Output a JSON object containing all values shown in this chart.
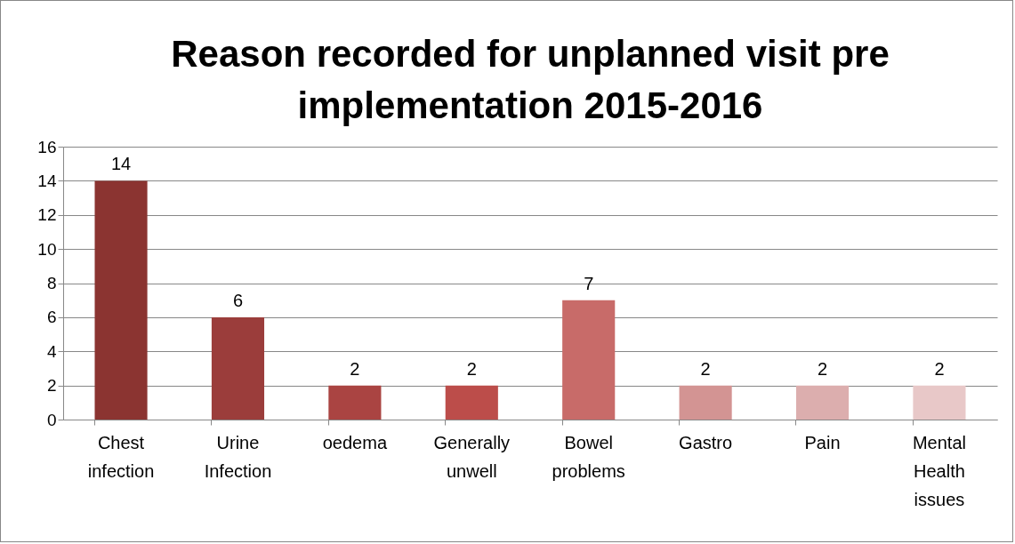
{
  "chart_data": {
    "type": "bar",
    "title": "Reason recorded for unplanned visit pre implementation 2015-2016",
    "categories": [
      "Chest infection",
      "Urine Infection",
      "oedema",
      "Generally unwell",
      "Bowel problems",
      "Gastro",
      "Pain",
      "Mental Health issues"
    ],
    "values": [
      14,
      6,
      2,
      2,
      7,
      2,
      2,
      2
    ],
    "colors": [
      "#8b3431",
      "#9b3d3b",
      "#aa4442",
      "#bc4d4a",
      "#c86b69",
      "#d39493",
      "#dcaeae",
      "#e8c8c8"
    ],
    "ylim": [
      0,
      16
    ],
    "yticks": [
      0,
      2,
      4,
      6,
      8,
      10,
      12,
      14,
      16
    ],
    "grid": "y",
    "data_labels": true
  }
}
